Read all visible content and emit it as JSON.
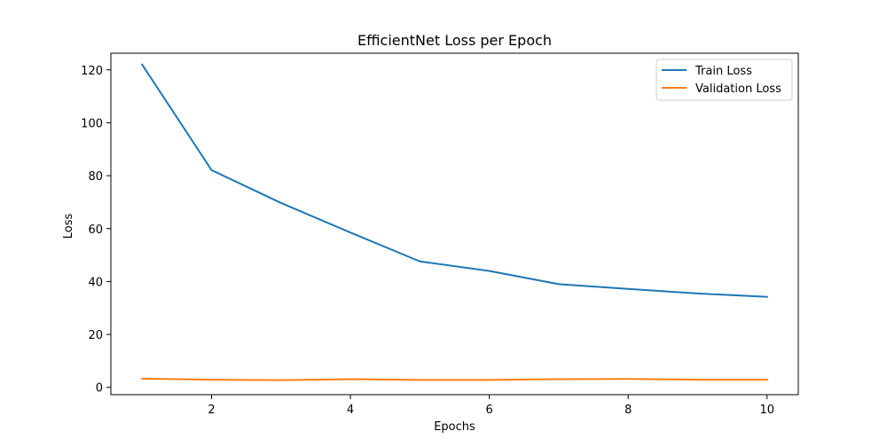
{
  "chart_data": {
    "type": "line",
    "title": "EfficientNet Loss per Epoch",
    "xlabel": "Epochs",
    "ylabel": "Loss",
    "x": [
      1,
      2,
      3,
      4,
      5,
      6,
      7,
      8,
      9,
      10
    ],
    "series": [
      {
        "name": "Train Loss",
        "color": "#1f77b4",
        "values": [
          122.0,
          82.1,
          69.7,
          58.5,
          47.6,
          44.0,
          39.0,
          37.2,
          35.5,
          34.2
        ]
      },
      {
        "name": "Validation Loss",
        "color": "#ff7f0e",
        "values": [
          3.3,
          2.9,
          2.7,
          3.1,
          2.8,
          2.8,
          3.1,
          3.2,
          2.9,
          2.9
        ]
      }
    ],
    "xlim": [
      0.55,
      10.45
    ],
    "ylim": [
      -2.77,
      126.29
    ],
    "xticks": [
      2,
      4,
      6,
      8,
      10
    ],
    "yticks": [
      0,
      20,
      40,
      60,
      80,
      100,
      120
    ],
    "grid": false,
    "legend_position": "top-right"
  }
}
